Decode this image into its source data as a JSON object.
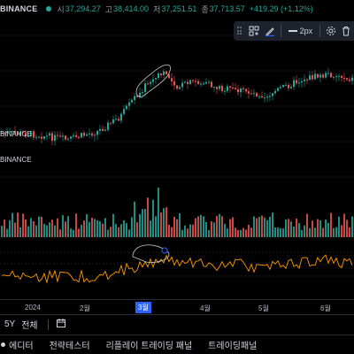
{
  "header": {
    "symbol": "BINANCE",
    "open_label": "시",
    "open": "37,294.27",
    "high_label": "고",
    "high": "38,414.00",
    "low_label": "저",
    "low": "37,251.51",
    "close_label": "종",
    "close": "37,713.57",
    "change": "+419.29 (+1.12%)"
  },
  "legend": {
    "symbol_main": "BINANCE",
    "symbol_vol": "BINANCE",
    "symbol_ind": "BINANCE"
  },
  "drawing_toolbar": {
    "width_label": "2px",
    "icons": [
      "drag-grip-icon",
      "apply-to-all-icon",
      "pencil-icon",
      "line-width-icon",
      "settings-icon",
      "delete-icon"
    ]
  },
  "time_axis": {
    "ticks": [
      "2024",
      "2월",
      "3월",
      "4월",
      "5월",
      "6월"
    ],
    "selected": "3월"
  },
  "range_bar": {
    "range": "5Y",
    "all": "전체"
  },
  "tabs": [
    "에디터",
    "전략테스터",
    "리플레이 트레이딩 패널",
    "트레이딩패널"
  ],
  "colors": {
    "up": "#26a69a",
    "down": "#ef5350",
    "accent": "#2962ff",
    "indicator": "#ff9800"
  }
}
